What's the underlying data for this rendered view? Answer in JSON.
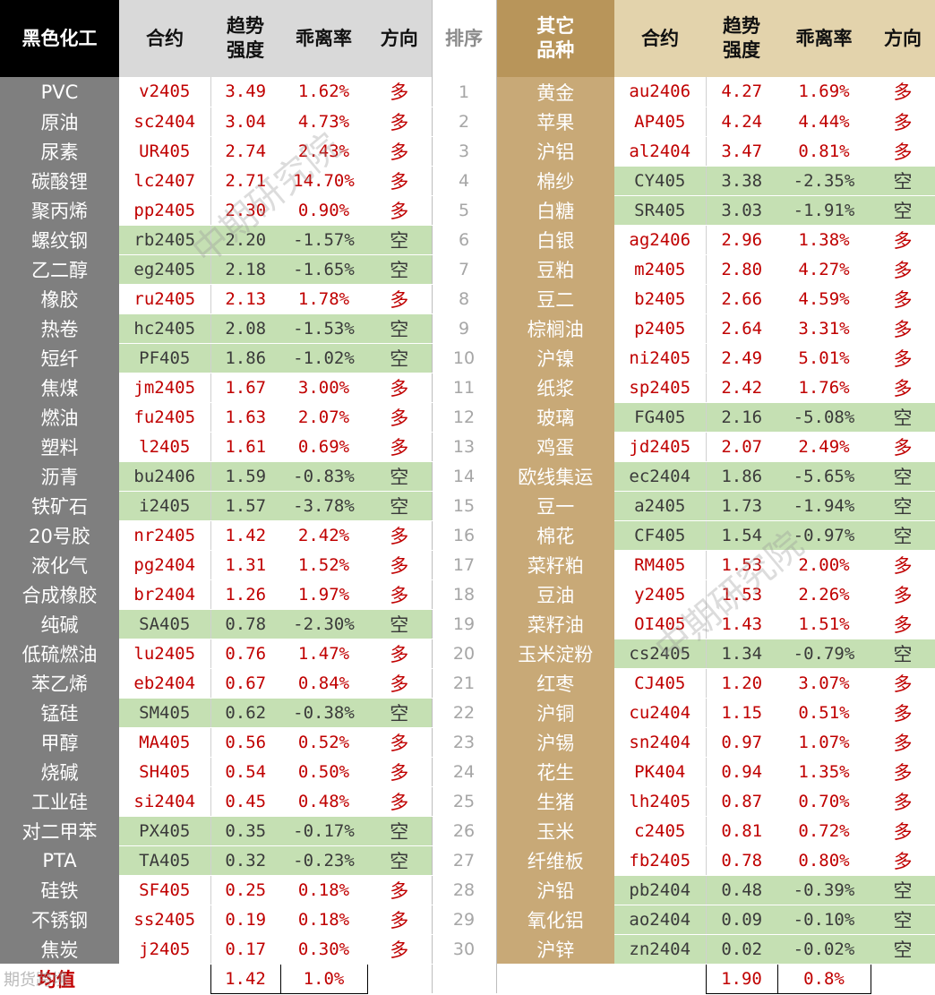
{
  "headers": {
    "left_category": "黑色化工",
    "contract": "合约",
    "trend_strength": "趋势强度",
    "deviation_rate": "乖离率",
    "direction": "方向",
    "rank": "排序",
    "right_category": "其它品种"
  },
  "rows": [
    {
      "rank": "1",
      "left": {
        "name": "PVC",
        "code": "v2405",
        "strength": "3.49",
        "dev": "1.62%",
        "dir": "多"
      },
      "right": {
        "name": "黄金",
        "code": "au2406",
        "strength": "4.27",
        "dev": "1.69%",
        "dir": "多"
      }
    },
    {
      "rank": "2",
      "left": {
        "name": "原油",
        "code": "sc2404",
        "strength": "3.04",
        "dev": "4.73%",
        "dir": "多"
      },
      "right": {
        "name": "苹果",
        "code": "AP405",
        "strength": "4.24",
        "dev": "4.44%",
        "dir": "多"
      }
    },
    {
      "rank": "3",
      "left": {
        "name": "尿素",
        "code": "UR405",
        "strength": "2.74",
        "dev": "2.43%",
        "dir": "多"
      },
      "right": {
        "name": "沪铝",
        "code": "al2404",
        "strength": "3.47",
        "dev": "0.81%",
        "dir": "多"
      }
    },
    {
      "rank": "4",
      "left": {
        "name": "碳酸锂",
        "code": "lc2407",
        "strength": "2.71",
        "dev": "14.70%",
        "dir": "多"
      },
      "right": {
        "name": "棉纱",
        "code": "CY405",
        "strength": "3.38",
        "dev": "-2.35%",
        "dir": "空"
      }
    },
    {
      "rank": "5",
      "left": {
        "name": "聚丙烯",
        "code": "pp2405",
        "strength": "2.30",
        "dev": "0.90%",
        "dir": "多"
      },
      "right": {
        "name": "白糖",
        "code": "SR405",
        "strength": "3.03",
        "dev": "-1.91%",
        "dir": "空"
      }
    },
    {
      "rank": "6",
      "left": {
        "name": "螺纹钢",
        "code": "rb2405",
        "strength": "2.20",
        "dev": "-1.57%",
        "dir": "空"
      },
      "right": {
        "name": "白银",
        "code": "ag2406",
        "strength": "2.96",
        "dev": "1.38%",
        "dir": "多"
      }
    },
    {
      "rank": "7",
      "left": {
        "name": "乙二醇",
        "code": "eg2405",
        "strength": "2.18",
        "dev": "-1.65%",
        "dir": "空"
      },
      "right": {
        "name": "豆粕",
        "code": "m2405",
        "strength": "2.80",
        "dev": "4.27%",
        "dir": "多"
      }
    },
    {
      "rank": "8",
      "left": {
        "name": "橡胶",
        "code": "ru2405",
        "strength": "2.13",
        "dev": "1.78%",
        "dir": "多"
      },
      "right": {
        "name": "豆二",
        "code": "b2405",
        "strength": "2.66",
        "dev": "4.59%",
        "dir": "多"
      }
    },
    {
      "rank": "9",
      "left": {
        "name": "热卷",
        "code": "hc2405",
        "strength": "2.08",
        "dev": "-1.53%",
        "dir": "空"
      },
      "right": {
        "name": "棕榈油",
        "code": "p2405",
        "strength": "2.64",
        "dev": "3.31%",
        "dir": "多"
      }
    },
    {
      "rank": "10",
      "left": {
        "name": "短纤",
        "code": "PF405",
        "strength": "1.86",
        "dev": "-1.02%",
        "dir": "空"
      },
      "right": {
        "name": "沪镍",
        "code": "ni2405",
        "strength": "2.49",
        "dev": "5.01%",
        "dir": "多"
      }
    },
    {
      "rank": "11",
      "left": {
        "name": "焦煤",
        "code": "jm2405",
        "strength": "1.67",
        "dev": "3.00%",
        "dir": "多"
      },
      "right": {
        "name": "纸浆",
        "code": "sp2405",
        "strength": "2.42",
        "dev": "1.76%",
        "dir": "多"
      }
    },
    {
      "rank": "12",
      "left": {
        "name": "燃油",
        "code": "fu2405",
        "strength": "1.63",
        "dev": "2.07%",
        "dir": "多"
      },
      "right": {
        "name": "玻璃",
        "code": "FG405",
        "strength": "2.16",
        "dev": "-5.08%",
        "dir": "空"
      }
    },
    {
      "rank": "13",
      "left": {
        "name": "塑料",
        "code": "l2405",
        "strength": "1.61",
        "dev": "0.69%",
        "dir": "多"
      },
      "right": {
        "name": "鸡蛋",
        "code": "jd2405",
        "strength": "2.07",
        "dev": "2.49%",
        "dir": "多"
      }
    },
    {
      "rank": "14",
      "left": {
        "name": "沥青",
        "code": "bu2406",
        "strength": "1.59",
        "dev": "-0.83%",
        "dir": "空"
      },
      "right": {
        "name": "欧线集运",
        "code": "ec2404",
        "strength": "1.86",
        "dev": "-5.65%",
        "dir": "空"
      }
    },
    {
      "rank": "15",
      "left": {
        "name": "铁矿石",
        "code": "i2405",
        "strength": "1.57",
        "dev": "-3.78%",
        "dir": "空"
      },
      "right": {
        "name": "豆一",
        "code": "a2405",
        "strength": "1.73",
        "dev": "-1.94%",
        "dir": "空"
      }
    },
    {
      "rank": "16",
      "left": {
        "name": "20号胶",
        "code": "nr2405",
        "strength": "1.42",
        "dev": "2.42%",
        "dir": "多"
      },
      "right": {
        "name": "棉花",
        "code": "CF405",
        "strength": "1.54",
        "dev": "-0.97%",
        "dir": "空"
      }
    },
    {
      "rank": "17",
      "left": {
        "name": "液化气",
        "code": "pg2404",
        "strength": "1.31",
        "dev": "1.52%",
        "dir": "多"
      },
      "right": {
        "name": "菜籽粕",
        "code": "RM405",
        "strength": "1.53",
        "dev": "2.00%",
        "dir": "多"
      }
    },
    {
      "rank": "18",
      "left": {
        "name": "合成橡胶",
        "code": "br2404",
        "strength": "1.26",
        "dev": "1.97%",
        "dir": "多"
      },
      "right": {
        "name": "豆油",
        "code": "y2405",
        "strength": "1.53",
        "dev": "2.26%",
        "dir": "多"
      }
    },
    {
      "rank": "19",
      "left": {
        "name": "纯碱",
        "code": "SA405",
        "strength": "0.78",
        "dev": "-2.30%",
        "dir": "空"
      },
      "right": {
        "name": "菜籽油",
        "code": "OI405",
        "strength": "1.43",
        "dev": "1.51%",
        "dir": "多"
      }
    },
    {
      "rank": "20",
      "left": {
        "name": "低硫燃油",
        "code": "lu2405",
        "strength": "0.76",
        "dev": "1.47%",
        "dir": "多"
      },
      "right": {
        "name": "玉米淀粉",
        "code": "cs2405",
        "strength": "1.34",
        "dev": "-0.79%",
        "dir": "空"
      }
    },
    {
      "rank": "21",
      "left": {
        "name": "苯乙烯",
        "code": "eb2404",
        "strength": "0.67",
        "dev": "0.84%",
        "dir": "多"
      },
      "right": {
        "name": "红枣",
        "code": "CJ405",
        "strength": "1.20",
        "dev": "3.07%",
        "dir": "多"
      }
    },
    {
      "rank": "22",
      "left": {
        "name": "锰硅",
        "code": "SM405",
        "strength": "0.62",
        "dev": "-0.38%",
        "dir": "空"
      },
      "right": {
        "name": "沪铜",
        "code": "cu2404",
        "strength": "1.15",
        "dev": "0.51%",
        "dir": "多"
      }
    },
    {
      "rank": "23",
      "left": {
        "name": "甲醇",
        "code": "MA405",
        "strength": "0.56",
        "dev": "0.52%",
        "dir": "多"
      },
      "right": {
        "name": "沪锡",
        "code": "sn2404",
        "strength": "0.97",
        "dev": "1.07%",
        "dir": "多"
      }
    },
    {
      "rank": "24",
      "left": {
        "name": "烧碱",
        "code": "SH405",
        "strength": "0.54",
        "dev": "0.50%",
        "dir": "多"
      },
      "right": {
        "name": "花生",
        "code": "PK404",
        "strength": "0.94",
        "dev": "1.35%",
        "dir": "多"
      }
    },
    {
      "rank": "25",
      "left": {
        "name": "工业硅",
        "code": "si2404",
        "strength": "0.45",
        "dev": "0.48%",
        "dir": "多"
      },
      "right": {
        "name": "生猪",
        "code": "lh2405",
        "strength": "0.87",
        "dev": "0.70%",
        "dir": "多"
      }
    },
    {
      "rank": "26",
      "left": {
        "name": "对二甲苯",
        "code": "PX405",
        "strength": "0.35",
        "dev": "-0.17%",
        "dir": "空"
      },
      "right": {
        "name": "玉米",
        "code": "c2405",
        "strength": "0.81",
        "dev": "0.72%",
        "dir": "多"
      }
    },
    {
      "rank": "27",
      "left": {
        "name": "PTA",
        "code": "TA405",
        "strength": "0.32",
        "dev": "-0.23%",
        "dir": "空"
      },
      "right": {
        "name": "纤维板",
        "code": "fb2405",
        "strength": "0.78",
        "dev": "0.80%",
        "dir": "多"
      }
    },
    {
      "rank": "28",
      "left": {
        "name": "硅铁",
        "code": "SF405",
        "strength": "0.25",
        "dev": "0.18%",
        "dir": "多"
      },
      "right": {
        "name": "沪铅",
        "code": "pb2404",
        "strength": "0.48",
        "dev": "-0.39%",
        "dir": "空"
      }
    },
    {
      "rank": "29",
      "left": {
        "name": "不锈钢",
        "code": "ss2405",
        "strength": "0.19",
        "dev": "0.18%",
        "dir": "多"
      },
      "right": {
        "name": "氧化铝",
        "code": "ao2404",
        "strength": "0.09",
        "dev": "-0.10%",
        "dir": "空"
      }
    },
    {
      "rank": "30",
      "left": {
        "name": "焦炭",
        "code": "j2405",
        "strength": "0.17",
        "dev": "0.30%",
        "dir": "多"
      },
      "right": {
        "name": "沪锌",
        "code": "zn2404",
        "strength": "0.02",
        "dev": "-0.02%",
        "dir": "空"
      }
    }
  ],
  "footer": {
    "label": "均值",
    "left_avg_strength": "1.42",
    "left_avg_dev": "1.0%",
    "right_avg_strength": "1.90",
    "right_avg_dev": "0.8%"
  },
  "watermarks": {
    "main": "中期研究院",
    "corner": "期货跨境"
  },
  "colors": {
    "long_text": "#c00000",
    "short_fill": "#c5e0b3",
    "left_category_bg": "#7f7f7f",
    "right_category_bg": "#c8a977",
    "right_header_bg": "#b8955a"
  }
}
